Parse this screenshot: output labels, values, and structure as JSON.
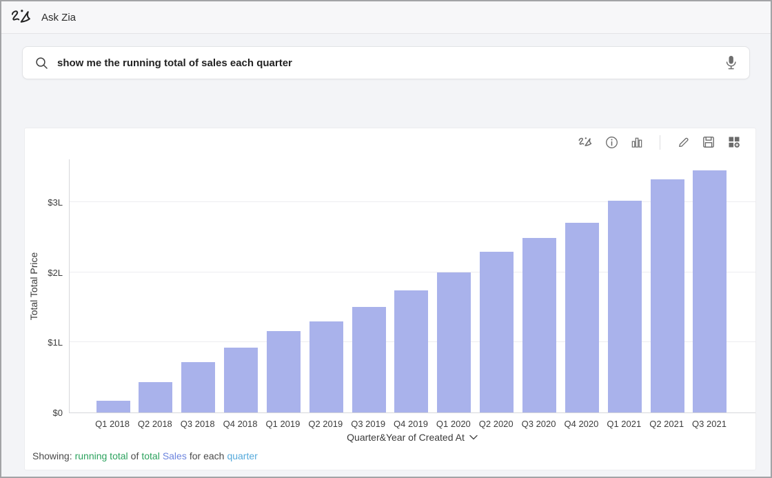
{
  "header": {
    "app_title": "Ask Zia"
  },
  "search": {
    "query": "show me the running total of sales each quarter",
    "search_icon": "magnifier-icon",
    "mic_icon": "microphone-icon"
  },
  "toolbar": {
    "icons": [
      "zia-insights",
      "info",
      "chart-type",
      "edit",
      "save",
      "add-to-dashboard"
    ]
  },
  "chart_data": {
    "type": "bar",
    "title": "",
    "categories": [
      "Q1 2018",
      "Q2 2018",
      "Q3 2018",
      "Q4 2018",
      "Q1 2019",
      "Q2 2019",
      "Q3 2019",
      "Q4 2019",
      "Q1 2020",
      "Q2 2020",
      "Q3 2020",
      "Q4 2020",
      "Q1 2021",
      "Q2 2021",
      "Q3 2021"
    ],
    "values": [
      0.17,
      0.43,
      0.72,
      0.93,
      1.16,
      1.3,
      1.51,
      1.74,
      2.0,
      2.29,
      2.49,
      2.71,
      3.02,
      3.33,
      3.45
    ],
    "value_unit": "L (lakh USD)",
    "xlabel": "Quarter&Year of Created At",
    "ylabel": "Total Total Price",
    "ylim": [
      0,
      3.62
    ],
    "yticks": [
      {
        "value": 0,
        "label": "$0"
      },
      {
        "value": 1,
        "label": "$1L"
      },
      {
        "value": 2,
        "label": "$2L"
      },
      {
        "value": 3,
        "label": "$3L"
      }
    ],
    "grid": true,
    "legend": false,
    "bar_color": "#a9b2eb"
  },
  "footer": {
    "segments": [
      {
        "text": "Showing:",
        "color": "#4a4a4a",
        "token": false
      },
      {
        "text": "running total",
        "color": "#2ba25d",
        "token": true
      },
      {
        "text": "of",
        "color": "#4a4a4a",
        "token": false
      },
      {
        "text": "total",
        "color": "#2ba25d",
        "token": true
      },
      {
        "text": "Sales",
        "color": "#6c84de",
        "token": true
      },
      {
        "text": "for each",
        "color": "#4a4a4a",
        "token": false
      },
      {
        "text": "quarter",
        "color": "#55a9db",
        "token": true
      }
    ]
  },
  "colors": {
    "page_bg": "#f3f4f7",
    "card_bg": "#ffffff",
    "axis": "#d6d7da",
    "grid": "#ededf0",
    "icon": "#6b6b6b"
  }
}
